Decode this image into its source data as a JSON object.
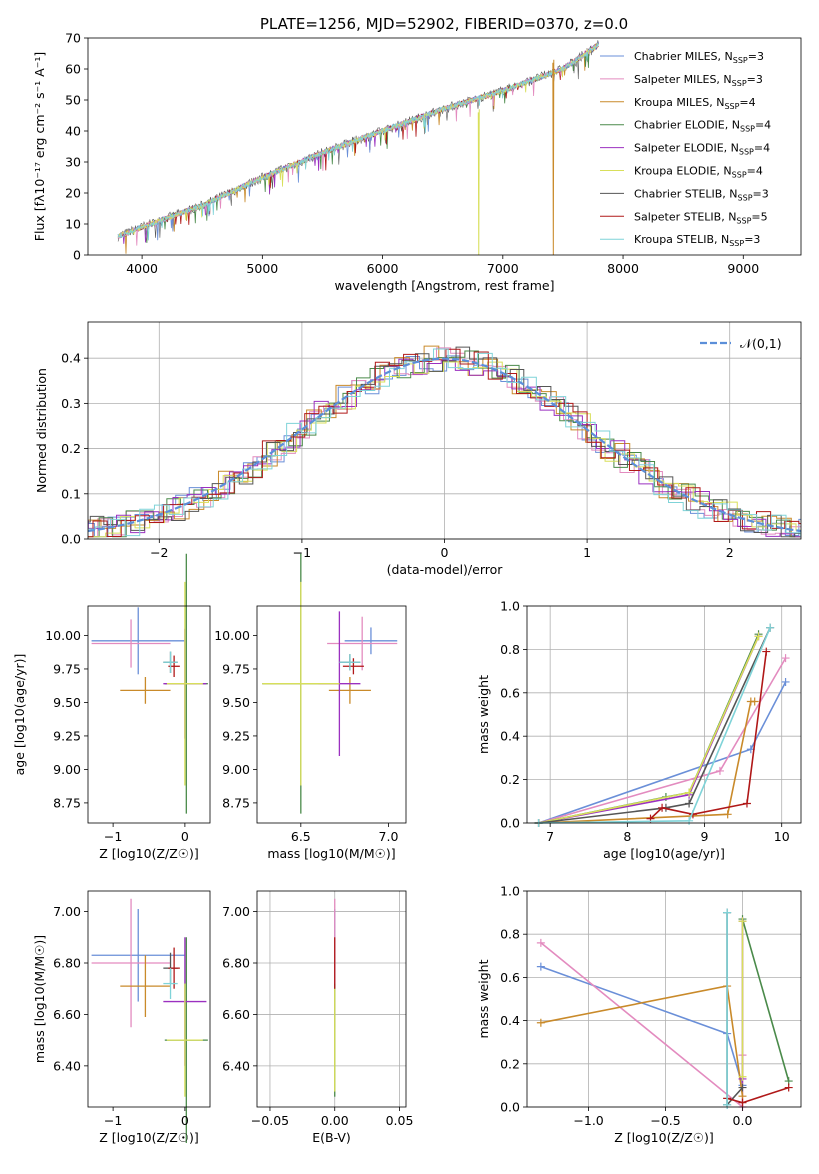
{
  "title": "PLATE=1256, MJD=52902, FIBERID=0370, z=0.0",
  "models": [
    {
      "label": "Chabrier MILES",
      "nssp": "3",
      "color": "#6a8fd8"
    },
    {
      "label": "Salpeter MILES",
      "nssp": "3",
      "color": "#e38bbf"
    },
    {
      "label": "Kroupa MILES",
      "nssp": "4",
      "color": "#c98a2a"
    },
    {
      "label": "Chabrier ELODIE",
      "nssp": "4",
      "color": "#4a8a4a"
    },
    {
      "label": "Salpeter ELODIE",
      "nssp": "4",
      "color": "#9b30c0"
    },
    {
      "label": "Kroupa ELODIE",
      "nssp": "4",
      "color": "#d8df5a"
    },
    {
      "label": "Chabrier STELIB",
      "nssp": "3",
      "color": "#555555"
    },
    {
      "label": "Salpeter STELIB",
      "nssp": "5",
      "color": "#b01818"
    },
    {
      "label": "Kroupa STELIB",
      "nssp": "3",
      "color": "#7fd3d8"
    }
  ],
  "nssp_prefix": "N",
  "nssp_sub": "SSP",
  "chart_data": [
    {
      "id": "spectrum",
      "type": "line",
      "xlabel": "wavelength [Angstrom, rest frame]",
      "ylabel": "Flux [fλ10⁻¹⁷ erg cm⁻² s⁻¹ A⁻¹]",
      "xlim": [
        3550,
        9480
      ],
      "ylim": [
        0,
        70
      ],
      "xticks": [
        4000,
        5000,
        6000,
        7000,
        8000,
        9000
      ],
      "yticks": [
        0,
        10,
        20,
        30,
        40,
        50,
        60,
        70
      ],
      "trend": {
        "x": [
          3800,
          4000,
          4500,
          5000,
          5500,
          6000,
          6500,
          7000,
          7500,
          7800
        ],
        "y": [
          6,
          9,
          16,
          25,
          33,
          40,
          47,
          53,
          60,
          68
        ]
      },
      "spikes": [
        {
          "model": 5,
          "x": 6800,
          "y": 46
        },
        {
          "model": 2,
          "x": 7420,
          "y": 62
        }
      ]
    },
    {
      "id": "residuals",
      "type": "histogram",
      "xlabel": "(data-model)/error",
      "ylabel": "Normed distribution",
      "xlim": [
        -2.5,
        2.5
      ],
      "ylim": [
        0,
        0.48
      ],
      "xticks": [
        -2,
        -1,
        0,
        1,
        2
      ],
      "yticks": [
        0.0,
        0.1,
        0.2,
        0.3,
        0.4
      ],
      "grid": true,
      "legend": "top-right",
      "reference": {
        "label": "𝒩(0,1)",
        "color": "#5b8fd9"
      }
    },
    {
      "id": "age-vs-Z",
      "type": "errorbar",
      "xlabel": "Z [log10(Z/Z☉)]",
      "ylabel": "age  [log10(age/yr)]",
      "xlim": [
        -1.35,
        0.35
      ],
      "ylim": [
        8.6,
        10.22
      ],
      "xticks": [
        -1,
        0
      ],
      "yticks": [
        8.75,
        9.0,
        9.25,
        9.5,
        9.75,
        10.0
      ],
      "points": [
        {
          "model": 0,
          "x": -0.65,
          "y": 9.96,
          "xerr": 0.65,
          "yerr": 0.25
        },
        {
          "model": 1,
          "x": -0.75,
          "y": 9.94,
          "xerr": 0.55,
          "yerr": 0.18
        },
        {
          "model": 2,
          "x": -0.55,
          "y": 9.59,
          "xerr": 0.35,
          "yerr": 0.1
        },
        {
          "model": 3,
          "x": 0.02,
          "y": 9.64,
          "xerr": 0.3,
          "yerr": 0.97
        },
        {
          "model": 4,
          "x": 0.0,
          "y": 9.64,
          "xerr": 0.3,
          "yerr": 0.41
        },
        {
          "model": 5,
          "x": 0.0,
          "y": 9.64,
          "xerr": 0.25,
          "yerr": 0.76
        },
        {
          "model": 6,
          "x": -0.2,
          "y": 9.8,
          "xerr": 0.1,
          "yerr": 0.08
        },
        {
          "model": 7,
          "x": -0.15,
          "y": 9.77,
          "xerr": 0.08,
          "yerr": 0.08
        },
        {
          "model": 8,
          "x": -0.2,
          "y": 9.8,
          "xerr": 0.1,
          "yerr": 0.08
        }
      ]
    },
    {
      "id": "age-vs-mass",
      "type": "errorbar",
      "xlabel": "mass [log10(M/M☉)]",
      "ylabel": "",
      "xlim": [
        6.25,
        7.1
      ],
      "ylim": [
        8.6,
        10.22
      ],
      "xticks": [
        6.5,
        7.0
      ],
      "yticks": [
        8.75,
        9.0,
        9.25,
        9.5,
        9.75,
        10.0
      ],
      "points": [
        {
          "model": 0,
          "x": 6.9,
          "y": 9.96,
          "xerr": 0.15,
          "yerr": 0.1
        },
        {
          "model": 1,
          "x": 6.85,
          "y": 9.94,
          "xerr": 0.2,
          "yerr": 0.2
        },
        {
          "model": 2,
          "x": 6.78,
          "y": 9.59,
          "xerr": 0.12,
          "yerr": 0.1
        },
        {
          "model": 3,
          "x": 6.5,
          "y": 9.64,
          "xerr": 0.22,
          "yerr": 0.97
        },
        {
          "model": 4,
          "x": 6.72,
          "y": 9.64,
          "xerr": 0.12,
          "yerr": 0.54
        },
        {
          "model": 5,
          "x": 6.5,
          "y": 9.64,
          "xerr": 0.22,
          "yerr": 0.76
        },
        {
          "model": 6,
          "x": 6.78,
          "y": 9.8,
          "xerr": 0.06,
          "yerr": 0.06
        },
        {
          "model": 7,
          "x": 6.8,
          "y": 9.77,
          "xerr": 0.06,
          "yerr": 0.06
        },
        {
          "model": 8,
          "x": 6.78,
          "y": 9.8,
          "xerr": 0.06,
          "yerr": 0.06
        }
      ]
    },
    {
      "id": "weight-vs-age",
      "type": "line",
      "xlabel": "age  [log10(age/yr)]",
      "ylabel": "mass weight",
      "xlim": [
        6.7,
        10.25
      ],
      "ylim": [
        0.0,
        1.0
      ],
      "xticks": [
        7,
        8,
        9,
        10
      ],
      "yticks": [
        0.0,
        0.2,
        0.4,
        0.6,
        0.8,
        1.0
      ],
      "grid": true,
      "series": [
        {
          "model": 0,
          "x": [
            6.85,
            9.6,
            10.05
          ],
          "y": [
            0.0,
            0.34,
            0.65
          ]
        },
        {
          "model": 1,
          "x": [
            6.85,
            9.2,
            10.05
          ],
          "y": [
            0.0,
            0.24,
            0.76
          ]
        },
        {
          "model": 2,
          "x": [
            6.85,
            9.3,
            9.6,
            9.65
          ],
          "y": [
            0.0,
            0.04,
            0.56,
            0.56
          ]
        },
        {
          "model": 3,
          "x": [
            6.85,
            8.5,
            8.8,
            9.7
          ],
          "y": [
            0.0,
            0.12,
            0.14,
            0.87
          ]
        },
        {
          "model": 4,
          "x": [
            6.85,
            8.8,
            9.7
          ],
          "y": [
            0.0,
            0.13,
            0.86
          ]
        },
        {
          "model": 5,
          "x": [
            6.85,
            8.8,
            9.7
          ],
          "y": [
            0.0,
            0.14,
            0.86
          ]
        },
        {
          "model": 6,
          "x": [
            6.85,
            8.5,
            8.8,
            9.85
          ],
          "y": [
            0.0,
            0.07,
            0.09,
            0.9
          ]
        },
        {
          "model": 7,
          "x": [
            8.3,
            8.45,
            8.85,
            9.55,
            9.8
          ],
          "y": [
            0.02,
            0.07,
            0.04,
            0.09,
            0.79
          ]
        },
        {
          "model": 8,
          "x": [
            6.85,
            8.8,
            9.85
          ],
          "y": [
            0.0,
            0.01,
            0.9
          ]
        }
      ]
    },
    {
      "id": "mass-vs-Z",
      "type": "errorbar",
      "xlabel": "Z [log10(Z/Z☉)]",
      "ylabel": "mass [log10(M/M☉)]",
      "xlim": [
        -1.35,
        0.35
      ],
      "ylim": [
        6.24,
        7.08
      ],
      "xticks": [
        -1,
        0
      ],
      "yticks": [
        6.4,
        6.6,
        6.8,
        7.0
      ],
      "points": [
        {
          "model": 0,
          "x": -0.65,
          "y": 6.83,
          "xerr": 0.65,
          "yerr": 0.18
        },
        {
          "model": 1,
          "x": -0.75,
          "y": 6.8,
          "xerr": 0.55,
          "yerr": 0.25
        },
        {
          "model": 2,
          "x": -0.55,
          "y": 6.71,
          "xerr": 0.35,
          "yerr": 0.12
        },
        {
          "model": 3,
          "x": 0.02,
          "y": 6.5,
          "xerr": 0.3,
          "yerr": 0.4
        },
        {
          "model": 4,
          "x": 0.0,
          "y": 6.65,
          "xerr": 0.3,
          "yerr": 0.25
        },
        {
          "model": 5,
          "x": 0.0,
          "y": 6.5,
          "xerr": 0.25,
          "yerr": 0.22
        },
        {
          "model": 6,
          "x": -0.2,
          "y": 6.78,
          "xerr": 0.1,
          "yerr": 0.06
        },
        {
          "model": 7,
          "x": -0.15,
          "y": 6.78,
          "xerr": 0.08,
          "yerr": 0.08
        },
        {
          "model": 8,
          "x": -0.2,
          "y": 6.72,
          "xerr": 0.1,
          "yerr": 0.06
        }
      ]
    },
    {
      "id": "mass-vs-EBV",
      "type": "errorbar",
      "xlabel": "E(B-V)",
      "ylabel": "",
      "xlim": [
        -0.06,
        0.055
      ],
      "ylim": [
        6.24,
        7.08
      ],
      "xticks": [
        -0.05,
        0.0,
        0.05
      ],
      "yticks": [
        6.4,
        6.6,
        6.8,
        7.0
      ],
      "grid": true,
      "points": [
        {
          "model": 0,
          "x": 0.0,
          "y": 6.83,
          "xerr": 0.0,
          "yerr": 0.18
        },
        {
          "model": 1,
          "x": 0.0,
          "y": 6.8,
          "xerr": 0.0,
          "yerr": 0.25
        },
        {
          "model": 3,
          "x": 0.0,
          "y": 6.5,
          "xerr": 0.0,
          "yerr": 0.22
        },
        {
          "model": 5,
          "x": 0.0,
          "y": 6.5,
          "xerr": 0.0,
          "yerr": 0.2
        },
        {
          "model": 7,
          "x": 0.0,
          "y": 6.8,
          "xerr": 0.0,
          "yerr": 0.1
        }
      ]
    },
    {
      "id": "weight-vs-Z",
      "type": "line",
      "xlabel": "Z [log10(Z/Z☉)]",
      "ylabel": "mass weight",
      "xlim": [
        -1.4,
        0.38
      ],
      "ylim": [
        0.0,
        1.0
      ],
      "xticks": [
        -1.0,
        -0.5,
        0.0
      ],
      "yticks": [
        0.0,
        0.2,
        0.4,
        0.6,
        0.8,
        1.0
      ],
      "grid": true,
      "series": [
        {
          "model": 0,
          "x": [
            -1.31,
            -0.1,
            0.0
          ],
          "y": [
            0.65,
            0.34,
            0.1
          ]
        },
        {
          "model": 1,
          "x": [
            -1.31,
            0.0,
            0.0
          ],
          "y": [
            0.76,
            0.0,
            0.24
          ]
        },
        {
          "model": 2,
          "x": [
            -1.31,
            -0.1,
            0.0
          ],
          "y": [
            0.39,
            0.56,
            0.05
          ]
        },
        {
          "model": 3,
          "x": [
            0.0,
            0.3
          ],
          "y": [
            0.87,
            0.12
          ]
        },
        {
          "model": 4,
          "x": [
            0.0,
            0.0
          ],
          "y": [
            0.86,
            0.13
          ]
        },
        {
          "model": 5,
          "x": [
            0.0,
            0.0
          ],
          "y": [
            0.86,
            0.14
          ]
        },
        {
          "model": 6,
          "x": [
            -0.1,
            -0.1,
            0.0
          ],
          "y": [
            0.9,
            0.01,
            0.09
          ]
        },
        {
          "model": 7,
          "x": [
            -0.1,
            0.0,
            0.3
          ],
          "y": [
            0.04,
            0.02,
            0.09
          ]
        },
        {
          "model": 8,
          "x": [
            -0.1,
            -0.1
          ],
          "y": [
            0.01,
            0.9
          ]
        }
      ]
    }
  ]
}
